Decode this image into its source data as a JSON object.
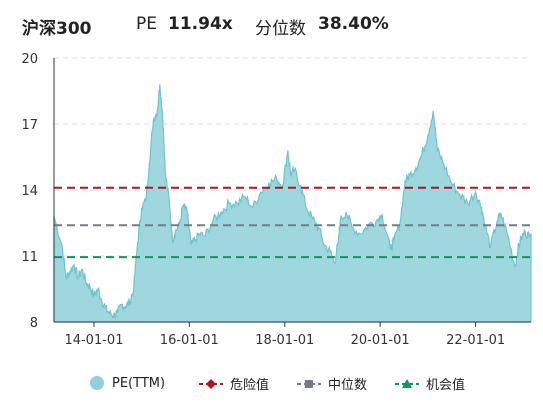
{
  "header": {
    "title": "沪深300",
    "pe_label": "PE",
    "pe_value": "11.94x",
    "percentile_label": "分位数",
    "percentile_value": "38.40%"
  },
  "legend": {
    "items": [
      {
        "label": "PE(TTM)",
        "color": "#8fd0db",
        "marker": "circle"
      },
      {
        "label": "危险值",
        "color": "#b3141c",
        "marker": "diamond-dashed-line"
      },
      {
        "label": "中位数",
        "color": "#757b87",
        "marker": "square-dashed-line"
      },
      {
        "label": "机会值",
        "color": "#14935a",
        "marker": "triangle-dashed-line"
      }
    ]
  },
  "colors": {
    "area_fill": "#9fd7df",
    "area_stroke": "#6fc3cf",
    "danger": "#b3141c",
    "median": "#757b87",
    "opportunity": "#14935a",
    "grid": "#dddddd",
    "axis": "#333333"
  },
  "chart_data": {
    "type": "area",
    "title": "",
    "xlabel": "",
    "ylabel": "",
    "ylim": [
      8,
      20
    ],
    "yticks": [
      8,
      11,
      14,
      17,
      20
    ],
    "xlim": [
      "2013-03-01",
      "2023-03-01"
    ],
    "xticks": [
      {
        "date": "2014-01-01",
        "label": "14-01-01"
      },
      {
        "date": "2016-01-01",
        "label": "16-01-01"
      },
      {
        "date": "2018-01-01",
        "label": "18-01-01"
      },
      {
        "date": "2020-01-01",
        "label": "20-01-01"
      },
      {
        "date": "2022-01-01",
        "label": "22-01-01"
      }
    ],
    "grid": "horizontal-dashed",
    "legend_position": "bottom",
    "reference_lines": [
      {
        "name": "危险值",
        "value": 14.1
      },
      {
        "name": "中位数",
        "value": 12.4
      },
      {
        "name": "机会值",
        "value": 10.95
      }
    ],
    "series": [
      {
        "name": "PE(TTM)",
        "points": [
          [
            "2013-03-01",
            12.8
          ],
          [
            "2013-05-01",
            11.5
          ],
          [
            "2013-06-01",
            10.0
          ],
          [
            "2013-07-01",
            10.3
          ],
          [
            "2013-08-01",
            10.6
          ],
          [
            "2013-09-01",
            10.0
          ],
          [
            "2013-10-01",
            10.4
          ],
          [
            "2013-11-01",
            9.8
          ],
          [
            "2013-12-01",
            9.6
          ],
          [
            "2014-01-01",
            9.2
          ],
          [
            "2014-02-01",
            9.5
          ],
          [
            "2014-03-01",
            9.0
          ],
          [
            "2014-04-01",
            8.6
          ],
          [
            "2014-05-01",
            8.4
          ],
          [
            "2014-06-01",
            8.3
          ],
          [
            "2014-07-01",
            8.4
          ],
          [
            "2014-08-01",
            8.8
          ],
          [
            "2014-09-01",
            8.7
          ],
          [
            "2014-10-01",
            8.9
          ],
          [
            "2014-11-01",
            9.5
          ],
          [
            "2014-12-01",
            11.6
          ],
          [
            "2015-01-01",
            13.2
          ],
          [
            "2015-02-01",
            13.5
          ],
          [
            "2015-03-01",
            15.2
          ],
          [
            "2015-04-01",
            17.2
          ],
          [
            "2015-05-01",
            17.6
          ],
          [
            "2015-05-20",
            18.8
          ],
          [
            "2015-06-10",
            17.5
          ],
          [
            "2015-07-01",
            14.8
          ],
          [
            "2015-08-01",
            13.4
          ],
          [
            "2015-08-25",
            11.7
          ],
          [
            "2015-09-15",
            12.1
          ],
          [
            "2015-10-15",
            12.4
          ],
          [
            "2015-11-15",
            13.3
          ],
          [
            "2015-12-15",
            13.0
          ],
          [
            "2016-01-15",
            11.5
          ],
          [
            "2016-02-15",
            11.7
          ],
          [
            "2016-03-15",
            12.0
          ],
          [
            "2016-05-01",
            11.9
          ],
          [
            "2016-07-01",
            12.6
          ],
          [
            "2016-09-01",
            13.0
          ],
          [
            "2016-11-01",
            13.4
          ],
          [
            "2017-01-01",
            13.4
          ],
          [
            "2017-03-01",
            13.7
          ],
          [
            "2017-05-01",
            13.2
          ],
          [
            "2017-07-01",
            13.9
          ],
          [
            "2017-09-01",
            14.3
          ],
          [
            "2017-11-01",
            14.5
          ],
          [
            "2017-12-15",
            14.2
          ],
          [
            "2018-01-25",
            15.8
          ],
          [
            "2018-02-15",
            14.7
          ],
          [
            "2018-03-15",
            14.9
          ],
          [
            "2018-05-01",
            14.2
          ],
          [
            "2018-06-15",
            13.2
          ],
          [
            "2018-08-01",
            12.7
          ],
          [
            "2018-09-15",
            12.3
          ],
          [
            "2018-11-01",
            11.5
          ],
          [
            "2018-12-15",
            11.2
          ],
          [
            "2019-01-15",
            10.7
          ],
          [
            "2019-02-15",
            11.6
          ],
          [
            "2019-03-01",
            12.6
          ],
          [
            "2019-04-15",
            13.0
          ],
          [
            "2019-06-01",
            12.3
          ],
          [
            "2019-08-01",
            12.0
          ],
          [
            "2019-10-01",
            12.4
          ],
          [
            "2019-12-01",
            12.6
          ],
          [
            "2020-01-15",
            12.9
          ],
          [
            "2020-03-20",
            11.3
          ],
          [
            "2020-04-15",
            11.7
          ],
          [
            "2020-06-01",
            12.5
          ],
          [
            "2020-07-10",
            14.4
          ],
          [
            "2020-08-15",
            14.7
          ],
          [
            "2020-10-01",
            15.0
          ],
          [
            "2020-11-15",
            15.6
          ],
          [
            "2021-01-01",
            16.5
          ],
          [
            "2021-02-10",
            17.6
          ],
          [
            "2021-03-15",
            15.8
          ],
          [
            "2021-05-01",
            15.2
          ],
          [
            "2021-07-01",
            14.3
          ],
          [
            "2021-09-01",
            13.8
          ],
          [
            "2021-11-01",
            13.4
          ],
          [
            "2022-01-01",
            13.9
          ],
          [
            "2022-02-15",
            13.2
          ],
          [
            "2022-03-15",
            12.4
          ],
          [
            "2022-04-25",
            11.4
          ],
          [
            "2022-06-15",
            12.6
          ],
          [
            "2022-07-15",
            12.9
          ],
          [
            "2022-09-01",
            12.0
          ],
          [
            "2022-10-31",
            10.5
          ],
          [
            "2022-11-20",
            11.3
          ],
          [
            "2022-12-15",
            11.8
          ],
          [
            "2023-01-15",
            12.1
          ],
          [
            "2023-02-15",
            11.9
          ]
        ]
      }
    ]
  }
}
